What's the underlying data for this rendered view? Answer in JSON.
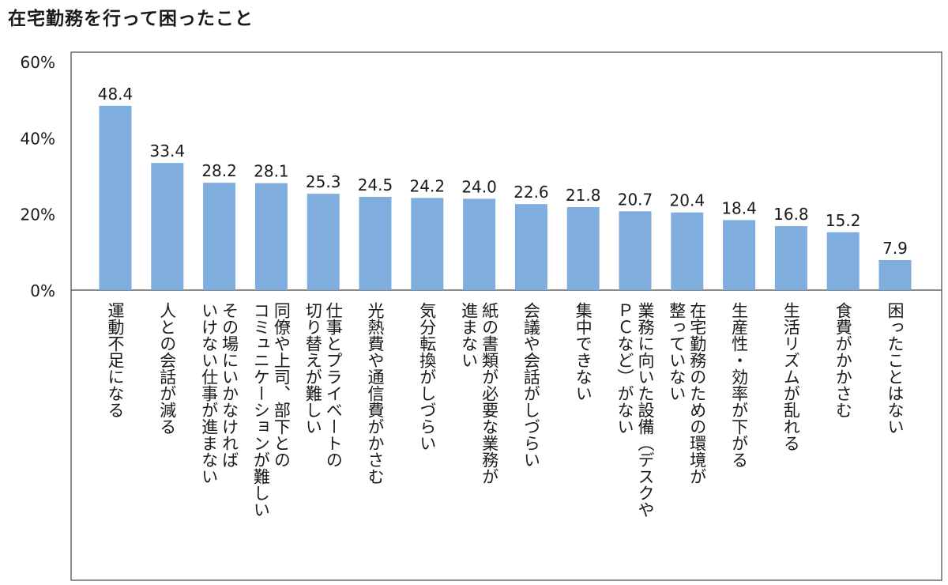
{
  "chart_data": {
    "type": "bar",
    "title": "在宅勤務を行って困ったこと",
    "xlabel": "",
    "ylabel": "",
    "ylim": [
      0,
      60
    ],
    "yticks": [
      "0%",
      "20%",
      "40%",
      "60%"
    ],
    "grid": false,
    "legend": "none",
    "bar_color": "#7fadde",
    "categories": [
      [
        "運動不足になる"
      ],
      [
        "人との会話が減る"
      ],
      [
        "その場にいかなければ",
        "いけない仕事が進まない"
      ],
      [
        "同僚や上司、部下との",
        "コミュニケーションが難しい"
      ],
      [
        "仕事とプライベートの",
        "切り替えが難しい"
      ],
      [
        "光熱費や通信費がかさむ"
      ],
      [
        "気分転換がしづらい"
      ],
      [
        "紙の書類が必要な業務が",
        "進まない"
      ],
      [
        "会議や会話がしづらい"
      ],
      [
        "集中できない"
      ],
      [
        "業務に向いた設備（デスクや",
        "ＰＣなど）がない"
      ],
      [
        "在宅勤務のための環境が",
        "整っていない"
      ],
      [
        "生産性・効率が下がる"
      ],
      [
        "生活リズムが乱れる"
      ],
      [
        "食費がかかさむ"
      ],
      [
        "困ったことはない"
      ]
    ],
    "values": [
      48.4,
      33.4,
      28.2,
      28.1,
      25.3,
      24.5,
      24.2,
      24.0,
      22.6,
      21.8,
      20.7,
      20.4,
      18.4,
      16.8,
      15.2,
      7.9
    ],
    "value_labels": [
      "48.4",
      "33.4",
      "28.2",
      "28.1",
      "25.3",
      "24.5",
      "24.2",
      "24.0",
      "22.6",
      "21.8",
      "20.7",
      "20.4",
      "18.4",
      "16.8",
      "15.2",
      "7.9"
    ]
  }
}
